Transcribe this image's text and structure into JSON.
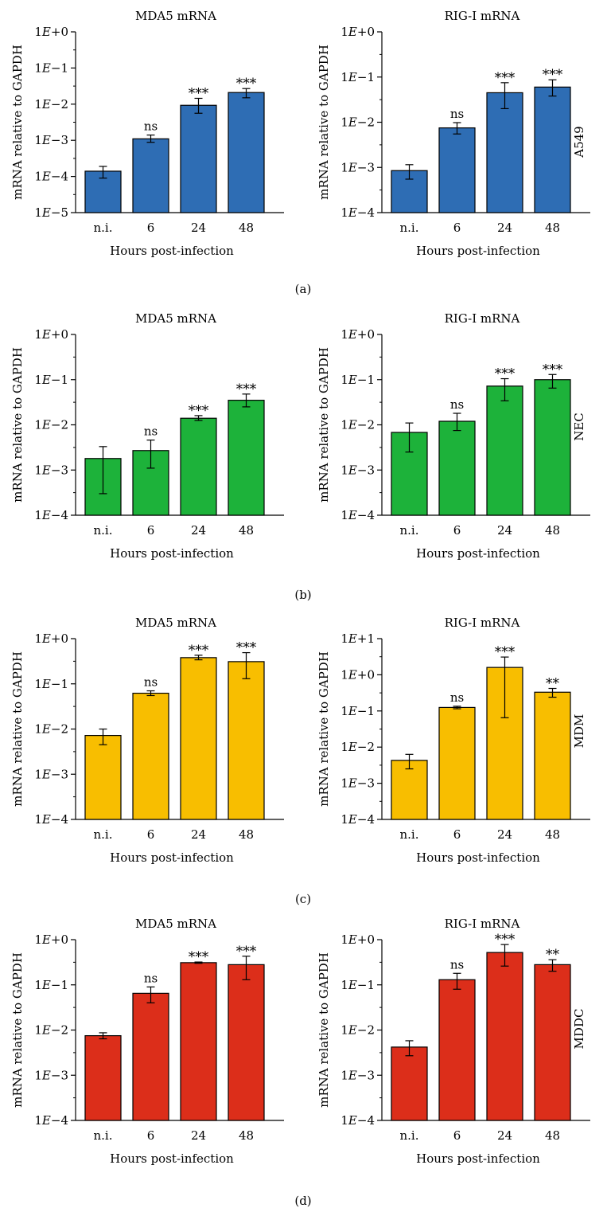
{
  "figure": {
    "panel_labels": [
      "(a)",
      "(b)",
      "(c)",
      "(d)"
    ],
    "cell_types": [
      "A549",
      "NEC",
      "MDM",
      "MDDC"
    ]
  },
  "colors": {
    "A549": "#2E6DB4",
    "NEC": "#1DB23A",
    "MDM": "#F8BE00",
    "MDDC": "#DC2E1A"
  },
  "chart_data": [
    {
      "type": "bar",
      "scale": "log10",
      "row": 0,
      "col": 0,
      "title": "MDA5 mRNA",
      "xlabel": "Hours post-infection",
      "ylabel": "mRNA relative to GAPDH",
      "categories": [
        "n.i.",
        "6",
        "24",
        "48"
      ],
      "yticks": [
        "1E−5",
        "1E−4",
        "1E−3",
        "1E−2",
        "1E−1",
        "1E+0"
      ],
      "ylim_exp": [
        -5,
        0
      ],
      "series": [
        {
          "values": [
            0.00014,
            0.0011,
            0.0093,
            0.021
          ],
          "err_low": [
            9e-05,
            0.00088,
            0.0056,
            0.015
          ],
          "err_high": [
            0.00019,
            0.0014,
            0.0145,
            0.027
          ],
          "annotations": [
            "",
            "ns",
            "***",
            "***"
          ]
        }
      ]
    },
    {
      "type": "bar",
      "scale": "log10",
      "row": 0,
      "col": 1,
      "title": "RIG-I mRNA",
      "xlabel": "Hours post-infection",
      "ylabel": "mRNA relative to GAPDH",
      "categories": [
        "n.i.",
        "6",
        "24",
        "48"
      ],
      "yticks": [
        "1E−4",
        "1E−3",
        "1E−2",
        "1E−1",
        "1E+0"
      ],
      "ylim_exp": [
        -4,
        0
      ],
      "series": [
        {
          "values": [
            0.00085,
            0.0075,
            0.045,
            0.06
          ],
          "err_low": [
            0.00055,
            0.0055,
            0.02,
            0.038
          ],
          "err_high": [
            0.00115,
            0.0098,
            0.075,
            0.087
          ],
          "annotations": [
            "",
            "ns",
            "***",
            "***"
          ]
        }
      ]
    },
    {
      "type": "bar",
      "scale": "log10",
      "row": 1,
      "col": 0,
      "title": "MDA5 mRNA",
      "xlabel": "Hours post-infection",
      "ylabel": "mRNA relative to GAPDH",
      "categories": [
        "n.i.",
        "6",
        "24",
        "48"
      ],
      "yticks": [
        "1E−4",
        "1E−3",
        "1E−2",
        "1E−1",
        "1E+0"
      ],
      "ylim_exp": [
        -4,
        0
      ],
      "series": [
        {
          "values": [
            0.0018,
            0.0027,
            0.014,
            0.035
          ],
          "err_low": [
            0.0003,
            0.0011,
            0.0125,
            0.025
          ],
          "err_high": [
            0.0033,
            0.0046,
            0.016,
            0.048
          ],
          "annotations": [
            "",
            "ns",
            "***",
            "***"
          ]
        }
      ]
    },
    {
      "type": "bar",
      "scale": "log10",
      "row": 1,
      "col": 1,
      "title": "RIG-I mRNA",
      "xlabel": "Hours post-infection",
      "ylabel": "mRNA relative to GAPDH",
      "categories": [
        "n.i.",
        "6",
        "24",
        "48"
      ],
      "yticks": [
        "1E−4",
        "1E−3",
        "1E−2",
        "1E−1",
        "1E+0"
      ],
      "ylim_exp": [
        -4,
        0
      ],
      "series": [
        {
          "values": [
            0.0068,
            0.012,
            0.072,
            0.1
          ],
          "err_low": [
            0.0025,
            0.0075,
            0.034,
            0.065
          ],
          "err_high": [
            0.011,
            0.018,
            0.105,
            0.13
          ],
          "annotations": [
            "",
            "ns",
            "***",
            "***"
          ]
        }
      ]
    },
    {
      "type": "bar",
      "scale": "log10",
      "row": 2,
      "col": 0,
      "title": "MDA5 mRNA",
      "xlabel": "Hours post-infection",
      "ylabel": "mRNA relative to GAPDH",
      "categories": [
        "n.i.",
        "6",
        "24",
        "48"
      ],
      "yticks": [
        "1E−4",
        "1E−3",
        "1E−2",
        "1E−1",
        "1E+0"
      ],
      "ylim_exp": [
        -4,
        0
      ],
      "series": [
        {
          "values": [
            0.0072,
            0.062,
            0.38,
            0.31
          ],
          "err_low": [
            0.0045,
            0.055,
            0.34,
            0.13
          ],
          "err_high": [
            0.01,
            0.07,
            0.43,
            0.49
          ],
          "annotations": [
            "",
            "ns",
            "***",
            "***"
          ]
        }
      ]
    },
    {
      "type": "bar",
      "scale": "log10",
      "row": 2,
      "col": 1,
      "title": "RIG-I mRNA",
      "xlabel": "Hours post-infection",
      "ylabel": "mRNA relative to GAPDH",
      "categories": [
        "n.i.",
        "6",
        "24",
        "48"
      ],
      "yticks": [
        "1E−4",
        "1E−3",
        "1E−2",
        "1E−1",
        "1E+0",
        "1E+1"
      ],
      "ylim_exp": [
        -4,
        1
      ],
      "series": [
        {
          "values": [
            0.0043,
            0.125,
            1.6,
            0.33
          ],
          "err_low": [
            0.0025,
            0.115,
            0.065,
            0.24
          ],
          "err_high": [
            0.0063,
            0.135,
            3.1,
            0.42
          ],
          "annotations": [
            "",
            "ns",
            "***",
            "**"
          ]
        }
      ]
    },
    {
      "type": "bar",
      "scale": "log10",
      "row": 3,
      "col": 0,
      "title": "MDA5 mRNA",
      "xlabel": "Hours post-infection",
      "ylabel": "mRNA relative to GAPDH",
      "categories": [
        "n.i.",
        "6",
        "24",
        "48"
      ],
      "yticks": [
        "1E−4",
        "1E−3",
        "1E−2",
        "1E−1",
        "1E+0"
      ],
      "ylim_exp": [
        -4,
        0
      ],
      "series": [
        {
          "values": [
            0.0075,
            0.065,
            0.31,
            0.28
          ],
          "err_low": [
            0.0064,
            0.04,
            0.3,
            0.13
          ],
          "err_high": [
            0.0087,
            0.09,
            0.32,
            0.43
          ],
          "annotations": [
            "",
            "ns",
            "***",
            "***"
          ]
        }
      ]
    },
    {
      "type": "bar",
      "scale": "log10",
      "row": 3,
      "col": 1,
      "title": "RIG-I mRNA",
      "xlabel": "Hours post-infection",
      "ylabel": "mRNA relative to GAPDH",
      "categories": [
        "n.i.",
        "6",
        "24",
        "48"
      ],
      "yticks": [
        "1E−4",
        "1E−3",
        "1E−2",
        "1E−1",
        "1E+0"
      ],
      "ylim_exp": [
        -4,
        0
      ],
      "series": [
        {
          "values": [
            0.0042,
            0.13,
            0.52,
            0.28
          ],
          "err_low": [
            0.0027,
            0.08,
            0.26,
            0.2
          ],
          "err_high": [
            0.0058,
            0.18,
            0.78,
            0.36
          ],
          "annotations": [
            "",
            "ns",
            "***",
            "**"
          ]
        }
      ]
    }
  ]
}
